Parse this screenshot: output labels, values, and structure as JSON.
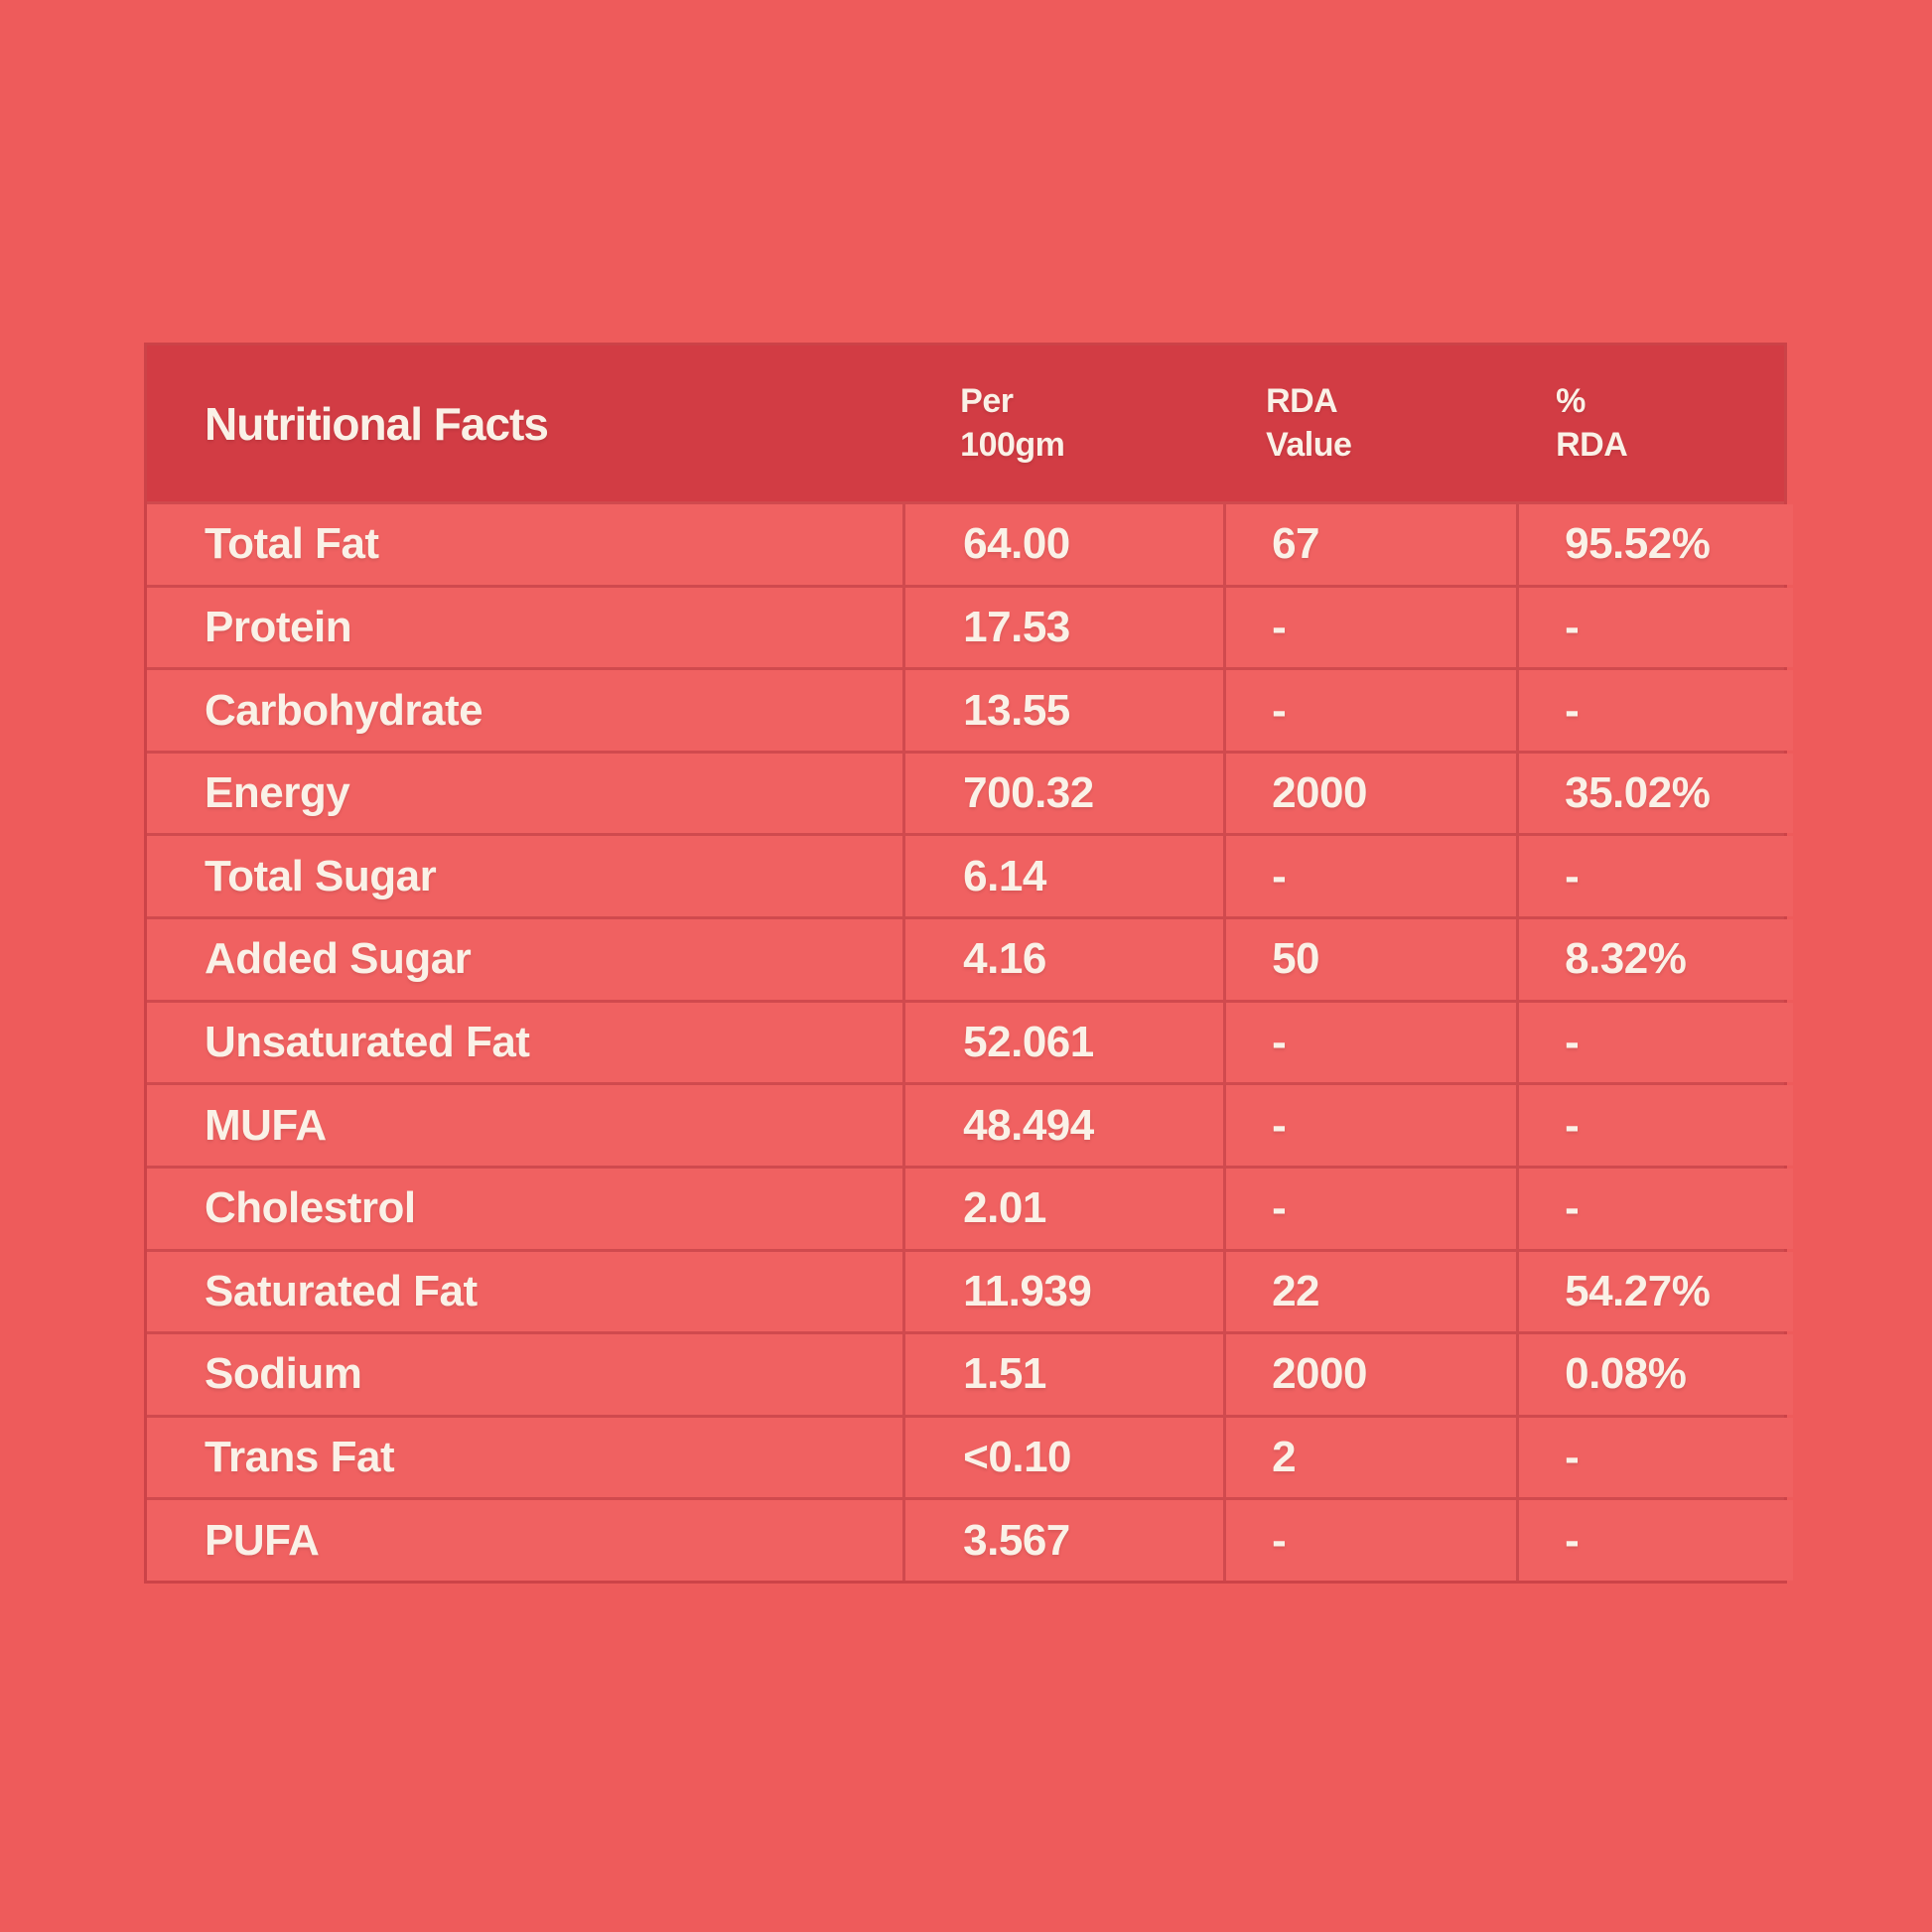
{
  "colors": {
    "page_bg": "#ee5b5b",
    "cell_bg": "#f06161",
    "header_bg": "#d23c44",
    "grid_line": "#d04a4e",
    "outer_border": "#cc4348",
    "text_cream": "#faf1e7"
  },
  "table": {
    "title": "Nutritional Facts",
    "columns": [
      {
        "line1": "Per",
        "line2": "100gm"
      },
      {
        "line1": "RDA",
        "line2": "Value"
      },
      {
        "line1": "%",
        "line2": "RDA"
      }
    ],
    "rows": [
      {
        "label": "Total Fat",
        "per_100gm": "64.00",
        "rda_value": "67",
        "pct_rda": "95.52%"
      },
      {
        "label": "Protein",
        "per_100gm": "17.53",
        "rda_value": "-",
        "pct_rda": "-"
      },
      {
        "label": "Carbohydrate",
        "per_100gm": "13.55",
        "rda_value": "-",
        "pct_rda": "-"
      },
      {
        "label": "Energy",
        "per_100gm": "700.32",
        "rda_value": "2000",
        "pct_rda": "35.02%"
      },
      {
        "label": "Total Sugar",
        "per_100gm": "6.14",
        "rda_value": "-",
        "pct_rda": "-"
      },
      {
        "label": "Added Sugar",
        "per_100gm": "4.16",
        "rda_value": "50",
        "pct_rda": "8.32%"
      },
      {
        "label": "Unsaturated Fat",
        "per_100gm": "52.061",
        "rda_value": "-",
        "pct_rda": "-"
      },
      {
        "label": "MUFA",
        "per_100gm": "48.494",
        "rda_value": "-",
        "pct_rda": "-"
      },
      {
        "label": "Cholestrol",
        "per_100gm": "2.01",
        "rda_value": "-",
        "pct_rda": "-"
      },
      {
        "label": "Saturated Fat",
        "per_100gm": "11.939",
        "rda_value": "22",
        "pct_rda": "54.27%"
      },
      {
        "label": "Sodium",
        "per_100gm": "1.51",
        "rda_value": "2000",
        "pct_rda": "0.08%"
      },
      {
        "label": "Trans Fat",
        "per_100gm": "<0.10",
        "rda_value": "2",
        "pct_rda": "-"
      },
      {
        "label": "PUFA",
        "per_100gm": "3.567",
        "rda_value": "-",
        "pct_rda": "-"
      }
    ]
  }
}
